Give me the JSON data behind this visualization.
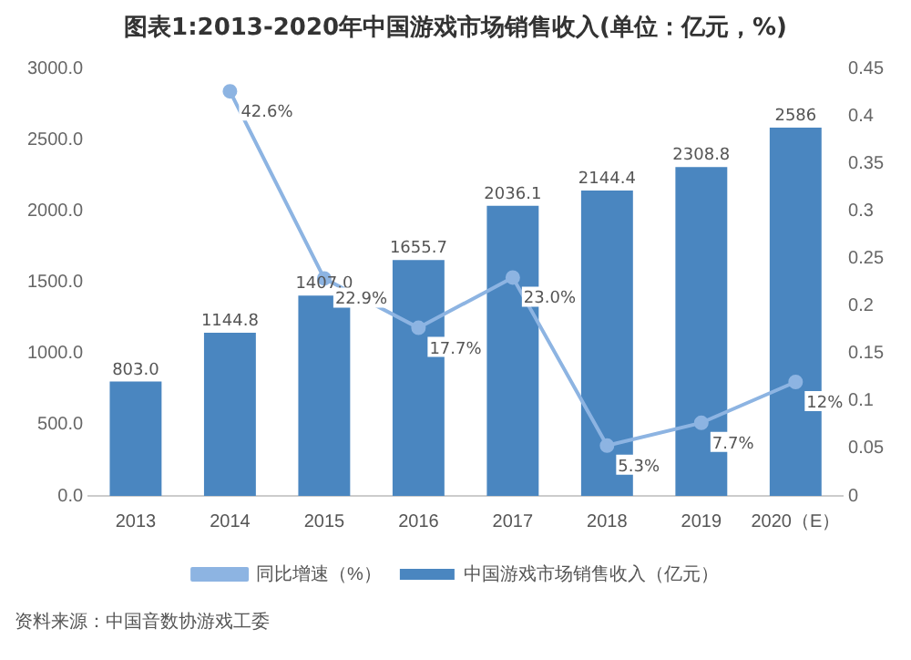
{
  "chart_data": {
    "type": "bar",
    "title": "图表1:2013-2020年中国游戏市场销售收入(单位：亿元，%)",
    "categories": [
      "2013",
      "2014",
      "2015",
      "2016",
      "2017",
      "2018",
      "2019",
      "2020（E）"
    ],
    "series": [
      {
        "name": "中国游戏市场销售收入（亿元）",
        "color": "#4a86c0",
        "values": [
          803.0,
          1144.8,
          1407.0,
          1655.7,
          2036.1,
          2144.4,
          2308.8,
          2586
        ],
        "value_labels": [
          "803.0",
          "1144.8",
          "1407.0",
          "1655.7",
          "2036.1",
          "2144.4",
          "2308.8",
          "2586"
        ]
      },
      {
        "name": "同比增速（%）",
        "type": "line",
        "axis": "y2",
        "color": "#8db4e2",
        "values": [
          null,
          0.426,
          0.229,
          0.177,
          0.23,
          0.053,
          0.077,
          0.12
        ],
        "value_labels": [
          null,
          "42.6%",
          "22.9%",
          "17.7%",
          "23.0%",
          "5.3%",
          "7.7%",
          "12%"
        ]
      }
    ],
    "ylim": [
      0,
      3000
    ],
    "yticks": [
      {
        "value": 0,
        "label": "0.0"
      },
      {
        "value": 500,
        "label": "500.0"
      },
      {
        "value": 1000,
        "label": "1000.0"
      },
      {
        "value": 1500,
        "label": "1500.0"
      },
      {
        "value": 2000,
        "label": "2000.0"
      },
      {
        "value": 2500,
        "label": "2500.0"
      },
      {
        "value": 3000,
        "label": "3000.0"
      }
    ],
    "y2lim": [
      0,
      0.45
    ],
    "y2ticks": [
      0,
      0.05,
      0.1,
      0.15,
      0.2,
      0.25,
      0.3,
      0.35,
      0.4,
      0.45
    ],
    "grid": false,
    "legend": "bottom",
    "marker": "circle",
    "line_style": "solid",
    "annotations": [
      "资料来源：中国音数协游戏工委"
    ]
  }
}
